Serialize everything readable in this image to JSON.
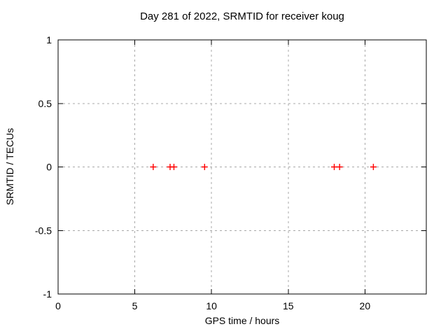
{
  "window": {
    "background": "#ffffff"
  },
  "chart_data": {
    "type": "scatter",
    "title": "Day 281 of 2022, SRMTID for receiver koug",
    "xlabel": "GPS time / hours",
    "ylabel": "SRMTID / TECUs",
    "xlim": [
      0,
      24
    ],
    "ylim": [
      -1,
      1
    ],
    "xticks": [
      0,
      5,
      10,
      15,
      20
    ],
    "xtick_labels": [
      "0",
      "5",
      "10",
      "15",
      "20"
    ],
    "yticks": [
      -1,
      -0.5,
      0,
      0.5,
      1
    ],
    "ytick_labels": [
      "-1",
      "-0.5",
      "0",
      "0.5",
      "1"
    ],
    "grid": true,
    "grid_style": "dashed",
    "legend_position": "none",
    "series": [
      {
        "name": "SRMTID",
        "marker": "plus",
        "color": "#ff0000",
        "points": [
          {
            "x": 6.2,
            "y": 0
          },
          {
            "x": 7.3,
            "y": 0
          },
          {
            "x": 7.55,
            "y": 0
          },
          {
            "x": 9.55,
            "y": 0
          },
          {
            "x": 18.0,
            "y": 0
          },
          {
            "x": 18.35,
            "y": 0
          },
          {
            "x": 20.55,
            "y": 0
          }
        ]
      }
    ],
    "colors": {
      "border": "#000000",
      "grid": "#a8a8a8",
      "text": "#000000",
      "marker": "#ff0000",
      "background": "#ffffff"
    }
  }
}
